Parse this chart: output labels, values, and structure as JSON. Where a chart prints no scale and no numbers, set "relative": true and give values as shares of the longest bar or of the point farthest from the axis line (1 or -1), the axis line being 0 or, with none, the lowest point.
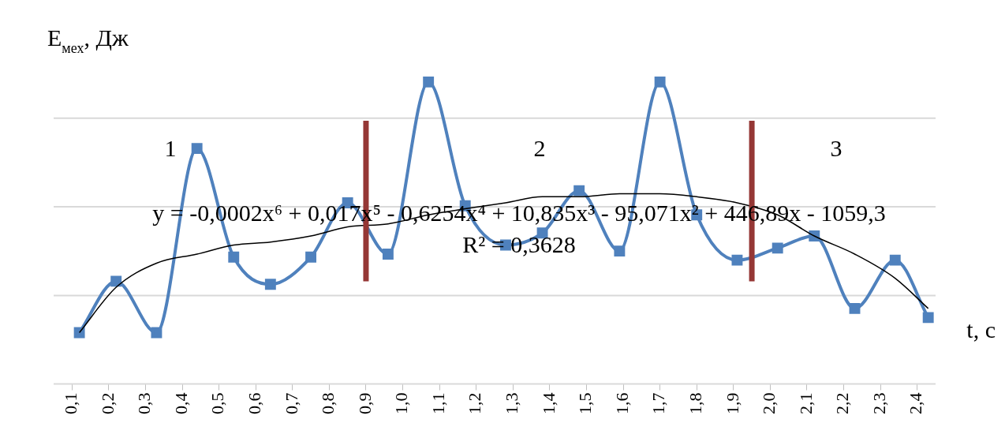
{
  "chart_data": {
    "type": "line",
    "ylabel": "E$_{мех}$, Дж",
    "xlabel": "t, с",
    "relative": true,
    "grid": "y",
    "legend": false,
    "xlim": [
      0.05,
      2.45
    ],
    "xticks": [
      {
        "value": 0.1,
        "label": "0,1"
      },
      {
        "value": 0.2,
        "label": "0,2"
      },
      {
        "value": 0.3,
        "label": "0,3"
      },
      {
        "value": 0.4,
        "label": "0,4"
      },
      {
        "value": 0.5,
        "label": "0,5"
      },
      {
        "value": 0.6,
        "label": "0,6"
      },
      {
        "value": 0.7,
        "label": "0,7"
      },
      {
        "value": 0.8,
        "label": "0,8"
      },
      {
        "value": 0.9,
        "label": "0,9"
      },
      {
        "value": 1.0,
        "label": "1,0"
      },
      {
        "value": 1.1,
        "label": "1,1"
      },
      {
        "value": 1.2,
        "label": "1,2"
      },
      {
        "value": 1.3,
        "label": "1,3"
      },
      {
        "value": 1.4,
        "label": "1,4"
      },
      {
        "value": 1.5,
        "label": "1,5"
      },
      {
        "value": 1.6,
        "label": "1,6"
      },
      {
        "value": 1.7,
        "label": "1,7"
      },
      {
        "value": 1.8,
        "label": "1,8"
      },
      {
        "value": 1.9,
        "label": "1,9"
      },
      {
        "value": 2.0,
        "label": "2,0"
      },
      {
        "value": 2.1,
        "label": "2,1"
      },
      {
        "value": 2.2,
        "label": "2,2"
      },
      {
        "value": 2.3,
        "label": "2,3"
      },
      {
        "value": 2.4,
        "label": "2,4"
      }
    ],
    "x": [
      0.12,
      0.22,
      0.33,
      0.44,
      0.54,
      0.64,
      0.75,
      0.85,
      0.96,
      1.07,
      1.17,
      1.28,
      1.38,
      1.48,
      1.59,
      1.7,
      1.8,
      1.91,
      2.02,
      2.12,
      2.23,
      2.34,
      2.43
    ],
    "series": [
      {
        "color": "#4f81bd",
        "marker": "square",
        "values": [
          0.17,
          0.34,
          0.17,
          0.78,
          0.42,
          0.33,
          0.42,
          0.6,
          0.43,
          1,
          0.59,
          0.46,
          0.5,
          0.64,
          0.44,
          1,
          0.56,
          0.41,
          0.45,
          0.49,
          0.25,
          0.41,
          0.22
        ]
      },
      {
        "type": "line",
        "color": "#000000",
        "marker": "none",
        "values": [
          0.17,
          0.32,
          0.4,
          0.43,
          0.46,
          0.47,
          0.49,
          0.52,
          0.53,
          0.56,
          0.58,
          0.6,
          0.62,
          0.62,
          0.63,
          0.63,
          0.62,
          0.6,
          0.56,
          0.49,
          0.43,
          0.35,
          0.25
        ]
      }
    ],
    "ref_lines": [
      {
        "axis": "x",
        "value": 0.9,
        "color": "#953735"
      },
      {
        "axis": "x",
        "value": 1.95,
        "color": "#953735"
      }
    ],
    "annotations": [
      "1",
      "2",
      "3",
      "y = -0,0002x⁶ + 0,017x⁵ - 0,6254x⁴ + 10,835x³ - 95,071x² + 446,89x - 1059,3",
      "R² = 0,3628"
    ]
  }
}
